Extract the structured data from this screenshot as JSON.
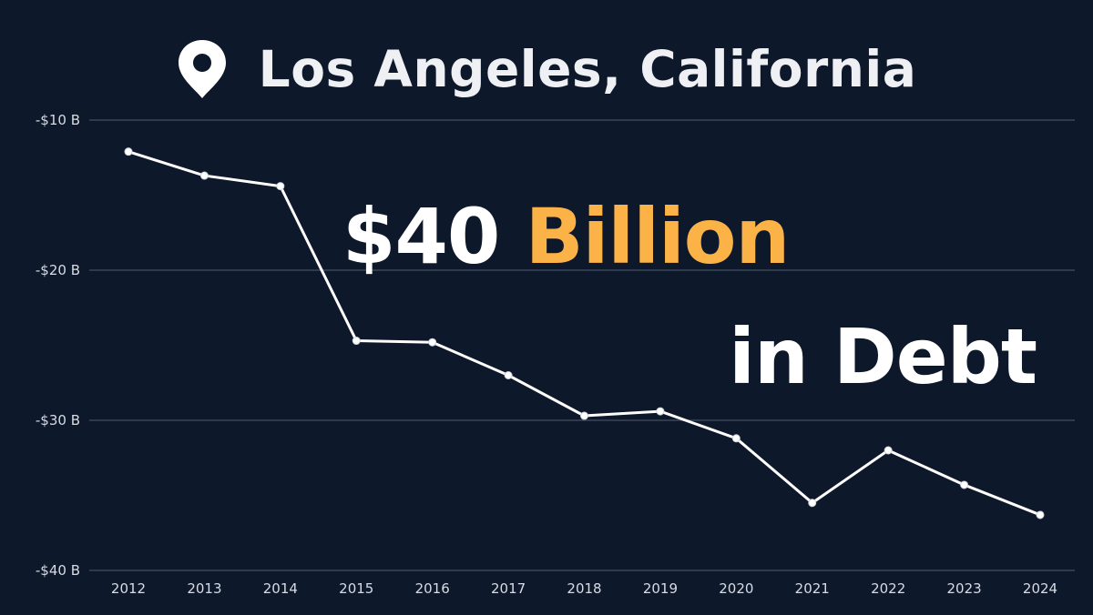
{
  "title": {
    "icon": "location-pin-icon",
    "text": "Los Angeles, California"
  },
  "headline": {
    "amount": "$40",
    "unit": "Billion",
    "line2": "in Debt"
  },
  "colors": {
    "background": "#0e182b",
    "line": "#ffffff",
    "grid": "#3a4558",
    "tick_text": "#d7dbe3",
    "accent": "#fbb347"
  },
  "chart_data": {
    "type": "line",
    "title": "Los Angeles, California",
    "xlabel": "",
    "ylabel": "",
    "x": [
      "2012",
      "2013",
      "2014",
      "2015",
      "2016",
      "2017",
      "2018",
      "2019",
      "2020",
      "2021",
      "2022",
      "2023",
      "2024"
    ],
    "y_ticks": [
      -10,
      -20,
      -30,
      -40
    ],
    "y_tick_labels": [
      "-$10 B",
      "-$20 B",
      "-$30 B",
      "-$40 B"
    ],
    "ylim": [
      -40,
      -10
    ],
    "grid": "horizontal",
    "series": [
      {
        "values": [
          -12.1,
          -13.7,
          -14.4,
          -24.7,
          -24.8,
          -27.0,
          -29.7,
          -29.4,
          -31.2,
          -35.5,
          -32.0,
          -34.3,
          -36.3
        ],
        "unit": "B"
      }
    ]
  }
}
